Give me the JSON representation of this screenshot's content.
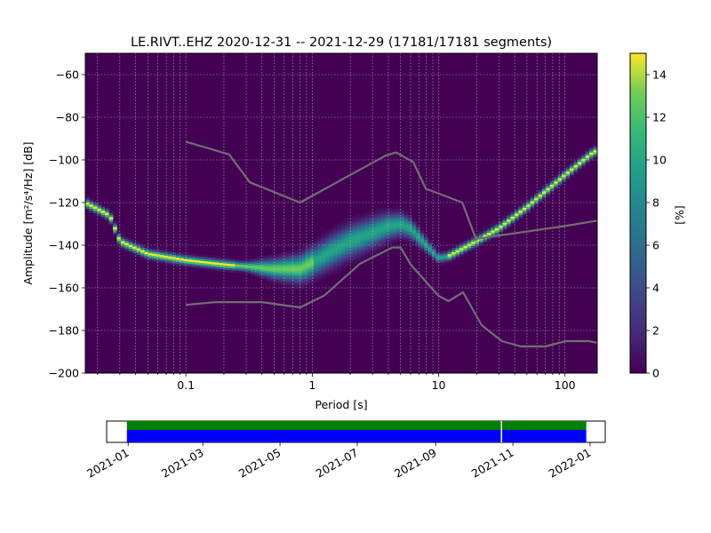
{
  "chart_data": [
    {
      "type": "heatmap",
      "title": "LE.RIVT..EHZ   2020-12-31 -- 2021-12-29  (17181/17181 segments)",
      "xlabel": "Period [s]",
      "ylabel": "Amplitude [m²/s⁴/Hz] [dB]",
      "x_scale": "log",
      "xlim": [
        0.016,
        180
      ],
      "ylim": [
        -200,
        -50
      ],
      "x_ticks": [
        0.1,
        1,
        10,
        100
      ],
      "x_tick_labels": [
        "0.1",
        "1",
        "10",
        "100"
      ],
      "y_ticks": [
        -200,
        -180,
        -160,
        -140,
        -120,
        -100,
        -80,
        -60
      ],
      "grid": true,
      "colorbar": {
        "label": "[%]",
        "range": [
          0,
          15
        ],
        "ticks": [
          0,
          2,
          4,
          6,
          8,
          10,
          12,
          14
        ],
        "colormap": "viridis"
      },
      "density_ridge": {
        "period": [
          0.016,
          0.025,
          0.03,
          0.05,
          0.1,
          0.2,
          0.5,
          0.8,
          1,
          1.5,
          2,
          3,
          4,
          5,
          6,
          8,
          10,
          12,
          15,
          20,
          30,
          50,
          100,
          170
        ],
        "amplitude_db": [
          -120,
          -126,
          -138,
          -144,
          -147,
          -149,
          -151,
          -151,
          -148,
          -142,
          -138,
          -134,
          -131,
          -130,
          -132,
          -140,
          -146,
          -145,
          -142,
          -138,
          -132,
          -122,
          -107,
          -96
        ]
      },
      "noise_models": {
        "NHNM": {
          "period": [
            0.1,
            0.22,
            0.32,
            0.8,
            3.8,
            4.6,
            6.3,
            7.9,
            15.4,
            20
          ],
          "amplitude_db": [
            -91.5,
            -97.4,
            -110.5,
            -120,
            -98,
            -96.5,
            -101,
            -113.5,
            -120,
            -138
          ]
        },
        "NHNM_long": {
          "period": [
            20,
            100,
            180
          ],
          "amplitude_db": [
            -137,
            -131,
            -128.5
          ]
        },
        "NLNM": {
          "period": [
            0.1,
            0.17,
            0.4,
            0.8,
            1.24,
            2.4,
            4.3,
            5,
            6,
            10,
            12,
            15.6,
            21.9,
            31.6,
            45,
            70,
            101,
            154,
            180
          ],
          "amplitude_db": [
            -168,
            -166.7,
            -166.7,
            -169.2,
            -163.7,
            -148.6,
            -141.1,
            -141.1,
            -149,
            -163.8,
            -166.2,
            -162.1,
            -177.5,
            -185,
            -187.5,
            -187.5,
            -185,
            -185,
            -185.8
          ]
        }
      }
    },
    {
      "type": "timeline",
      "range": [
        "2020-12-31",
        "2021-12-29"
      ],
      "x_tick_labels": [
        "2021-01",
        "2021-03",
        "2021-05",
        "2021-07",
        "2021-09",
        "2021-11",
        "2022-01"
      ],
      "x_ticks": [
        "2021-01-01",
        "2021-03-01",
        "2021-05-01",
        "2021-07-01",
        "2021-09-01",
        "2021-11-01",
        "2022-01-01"
      ],
      "gap": "2021-10-23",
      "colors": {
        "data": "#0000ff",
        "used": "#008000"
      }
    }
  ]
}
